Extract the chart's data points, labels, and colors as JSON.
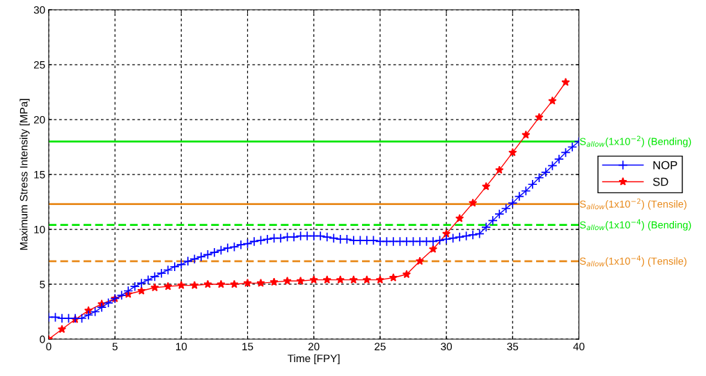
{
  "chart_data": {
    "type": "line",
    "xlabel": "Time [FPY]",
    "ylabel": "Maximum Stress Intensity [MPa]",
    "xlim": [
      0,
      40
    ],
    "xticks": [
      0,
      5,
      10,
      15,
      20,
      25,
      30,
      35,
      40
    ],
    "ylim": [
      0,
      30
    ],
    "yticks": [
      0,
      5,
      10,
      15,
      20,
      25,
      30
    ],
    "grid": true,
    "legend": "right",
    "series": [
      {
        "name": "NOP",
        "color": "#0000ff",
        "marker": "cross",
        "x": [
          0,
          0.5,
          1,
          1.5,
          2,
          2.5,
          3,
          3.5,
          4,
          4.5,
          5,
          5.5,
          6,
          6.5,
          7,
          7.5,
          8,
          8.5,
          9,
          9.5,
          10,
          10.5,
          11,
          11.5,
          12,
          12.5,
          13,
          13.5,
          14,
          14.5,
          15,
          15.5,
          16,
          16.5,
          17,
          17.5,
          18,
          18.5,
          19,
          19.5,
          20,
          20.5,
          21,
          21.5,
          22,
          22.5,
          23,
          23.5,
          24,
          24.5,
          25,
          25.5,
          26,
          26.5,
          27,
          27.5,
          28,
          28.5,
          29,
          29.5,
          30,
          30.5,
          31,
          31.5,
          32,
          32.5,
          33,
          33.5,
          34,
          34.5,
          35,
          35.5,
          36,
          36.5,
          37,
          37.5,
          38,
          38.5,
          39,
          39.5,
          40
        ],
        "values": [
          2.0,
          2.0,
          1.9,
          1.9,
          1.9,
          1.9,
          2.2,
          2.5,
          2.9,
          3.3,
          3.7,
          4.0,
          4.4,
          4.8,
          5.1,
          5.4,
          5.7,
          6.0,
          6.3,
          6.6,
          6.8,
          7.1,
          7.3,
          7.5,
          7.7,
          7.9,
          8.1,
          8.3,
          8.4,
          8.6,
          8.7,
          8.9,
          9.0,
          9.1,
          9.2,
          9.2,
          9.3,
          9.3,
          9.4,
          9.4,
          9.4,
          9.4,
          9.3,
          9.2,
          9.1,
          9.1,
          9.0,
          9.0,
          9.0,
          9.0,
          8.9,
          8.9,
          8.9,
          8.9,
          8.9,
          8.9,
          8.9,
          8.9,
          8.9,
          9.0,
          9.1,
          9.2,
          9.3,
          9.4,
          9.5,
          9.6,
          10.2,
          10.8,
          11.4,
          11.9,
          12.4,
          13.0,
          13.5,
          14.1,
          14.7,
          15.2,
          15.8,
          16.4,
          17.0,
          17.5,
          18.0
        ]
      },
      {
        "name": "SD",
        "color": "#ff0000",
        "marker": "star",
        "x": [
          0,
          1,
          2,
          3,
          4,
          5,
          6,
          7,
          8,
          9,
          10,
          11,
          12,
          13,
          14,
          15,
          16,
          17,
          18,
          19,
          20,
          21,
          22,
          23,
          24,
          25,
          26,
          27,
          28,
          29,
          30,
          31,
          32,
          33,
          34,
          35,
          36,
          37,
          38,
          39
        ],
        "values": [
          0,
          0.9,
          1.8,
          2.6,
          3.2,
          3.7,
          4.1,
          4.4,
          4.7,
          4.8,
          4.9,
          4.9,
          5.0,
          5.0,
          5.0,
          5.1,
          5.1,
          5.2,
          5.3,
          5.3,
          5.4,
          5.4,
          5.4,
          5.4,
          5.4,
          5.4,
          5.6,
          5.9,
          7.1,
          8.2,
          9.6,
          11.0,
          12.4,
          13.9,
          15.4,
          17.0,
          18.6,
          20.2,
          21.7,
          23.4
        ]
      }
    ],
    "ref_lines": [
      {
        "axis": "y",
        "value": 18,
        "label": "S$_{allow}$(1x10$^{−2}$) (Bending)",
        "color": "#00e600",
        "line_style": "solid"
      },
      {
        "axis": "y",
        "value": 12.3,
        "label": "S$_{allow}$(1x10$^{−2}$) (Tensile)",
        "color": "#e8891a",
        "line_style": "solid"
      },
      {
        "axis": "y",
        "value": 10.4,
        "label": "S$_{allow}$(1x10$^{−4}$) (Bending)",
        "color": "#00e600",
        "line_style": "dashed"
      },
      {
        "axis": "y",
        "value": 7.1,
        "label": "S$_{allow}$(1x10$^{−4}$) (Tensile)",
        "color": "#e8891a",
        "line_style": "dashed"
      }
    ]
  }
}
